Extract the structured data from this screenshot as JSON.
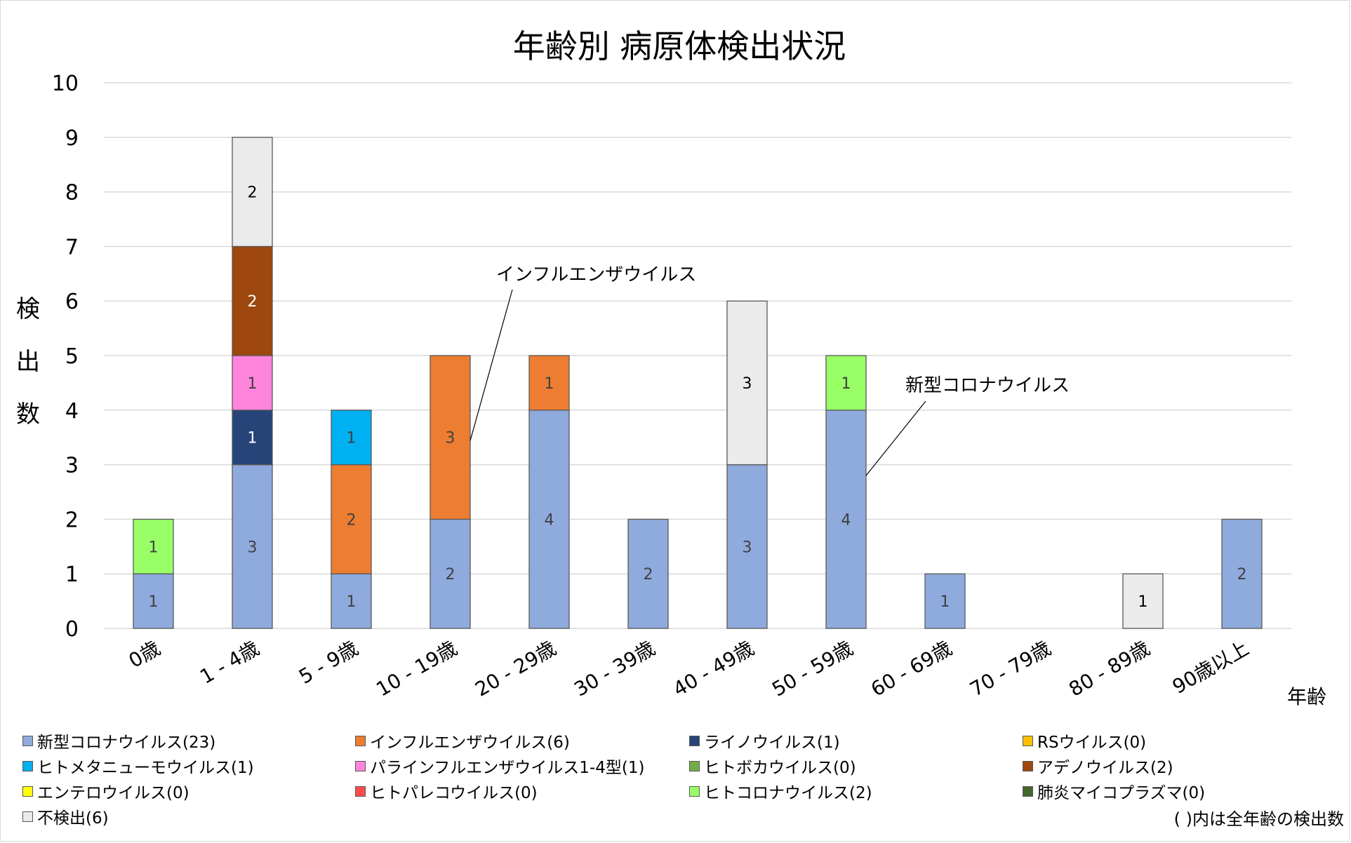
{
  "chart_data": {
    "type": "bar",
    "stacked": true,
    "title": "年齢別 病原体検出状況",
    "xlabel": "年齢",
    "ylabel": "検出数",
    "ylim": [
      0,
      10
    ],
    "yticks": [
      0,
      1,
      2,
      3,
      4,
      5,
      6,
      7,
      8,
      9,
      10
    ],
    "grid": true,
    "legend_position": "bottom",
    "categories": [
      "0歳",
      "1 - 4歳",
      "5 - 9歳",
      "10 - 19歳",
      "20 - 29歳",
      "30 - 39歳",
      "40 - 49歳",
      "50 - 59歳",
      "60 - 69歳",
      "70 - 79歳",
      "80 - 89歳",
      "90歳以上"
    ],
    "series": [
      {
        "name": "新型コロナウイルス",
        "total": 23,
        "color": "#8faadc",
        "label_color": "#404040",
        "values": [
          1,
          3,
          1,
          2,
          4,
          2,
          3,
          4,
          1,
          0,
          0,
          2
        ]
      },
      {
        "name": "インフルエンザウイルス",
        "total": 6,
        "color": "#ed7d31",
        "label_color": "#404040",
        "values": [
          0,
          0,
          2,
          3,
          1,
          0,
          0,
          0,
          0,
          0,
          0,
          0
        ]
      },
      {
        "name": "ライノウイルス",
        "total": 1,
        "color": "#264478",
        "label_color": "#ffffff",
        "values": [
          0,
          1,
          0,
          0,
          0,
          0,
          0,
          0,
          0,
          0,
          0,
          0
        ]
      },
      {
        "name": "RSウイルス",
        "total": 0,
        "color": "#ffc000",
        "label_color": "#404040",
        "values": [
          0,
          0,
          0,
          0,
          0,
          0,
          0,
          0,
          0,
          0,
          0,
          0
        ]
      },
      {
        "name": "ヒトメタニューモウイルス",
        "total": 1,
        "color": "#00b0f0",
        "label_color": "#404040",
        "values": [
          0,
          0,
          1,
          0,
          0,
          0,
          0,
          0,
          0,
          0,
          0,
          0
        ]
      },
      {
        "name": "パラインフルエンザウイルス1-4型",
        "total": 1,
        "color": "#ff85dc",
        "label_color": "#404040",
        "values": [
          0,
          1,
          0,
          0,
          0,
          0,
          0,
          0,
          0,
          0,
          0,
          0
        ]
      },
      {
        "name": "ヒトボカウイルス",
        "total": 0,
        "color": "#70ad47",
        "label_color": "#404040",
        "values": [
          0,
          0,
          0,
          0,
          0,
          0,
          0,
          0,
          0,
          0,
          0,
          0
        ]
      },
      {
        "name": "アデノウイルス",
        "total": 2,
        "color": "#9e480e",
        "label_color": "#ffffff",
        "values": [
          0,
          2,
          0,
          0,
          0,
          0,
          0,
          0,
          0,
          0,
          0,
          0
        ]
      },
      {
        "name": "エンテロウイルス",
        "total": 0,
        "color": "#ffff00",
        "label_color": "#404040",
        "values": [
          0,
          0,
          0,
          0,
          0,
          0,
          0,
          0,
          0,
          0,
          0,
          0
        ]
      },
      {
        "name": "ヒトパレコウイルス",
        "total": 0,
        "color": "#ff4b4b",
        "label_color": "#404040",
        "values": [
          0,
          0,
          0,
          0,
          0,
          0,
          0,
          0,
          0,
          0,
          0,
          0
        ]
      },
      {
        "name": "ヒトコロナウイルス",
        "total": 2,
        "color": "#99ff66",
        "label_color": "#404040",
        "values": [
          1,
          0,
          0,
          0,
          0,
          0,
          0,
          1,
          0,
          0,
          0,
          0
        ]
      },
      {
        "name": "肺炎マイコプラズマ",
        "total": 0,
        "color": "#43682b",
        "label_color": "#ffffff",
        "values": [
          0,
          0,
          0,
          0,
          0,
          0,
          0,
          0,
          0,
          0,
          0,
          0
        ]
      },
      {
        "name": "不検出",
        "total": 6,
        "color": "#ebebeb",
        "label_color": "#000000",
        "values": [
          0,
          2,
          0,
          0,
          0,
          0,
          3,
          0,
          0,
          0,
          1,
          0
        ]
      }
    ],
    "annotations": [
      {
        "text": "インフルエンザウイルス",
        "category": "10 - 19歳",
        "series": "インフルエンザウイルス"
      },
      {
        "text": "新型コロナウイルス",
        "category": "50 - 59歳",
        "series": "新型コロナウイルス"
      }
    ],
    "footnote": "( )内は全年齢の検出数"
  },
  "legend_order": [
    [
      "新型コロナウイルス",
      "インフルエンザウイルス",
      "ライノウイルス",
      "RSウイルス"
    ],
    [
      "ヒトメタニューモウイルス",
      "パラインフルエンザウイルス1-4型",
      "ヒトボカウイルス",
      "アデノウイルス"
    ],
    [
      "エンテロウイルス",
      "ヒトパレコウイルス",
      "ヒトコロナウイルス",
      "肺炎マイコプラズマ"
    ],
    [
      "不検出"
    ]
  ]
}
